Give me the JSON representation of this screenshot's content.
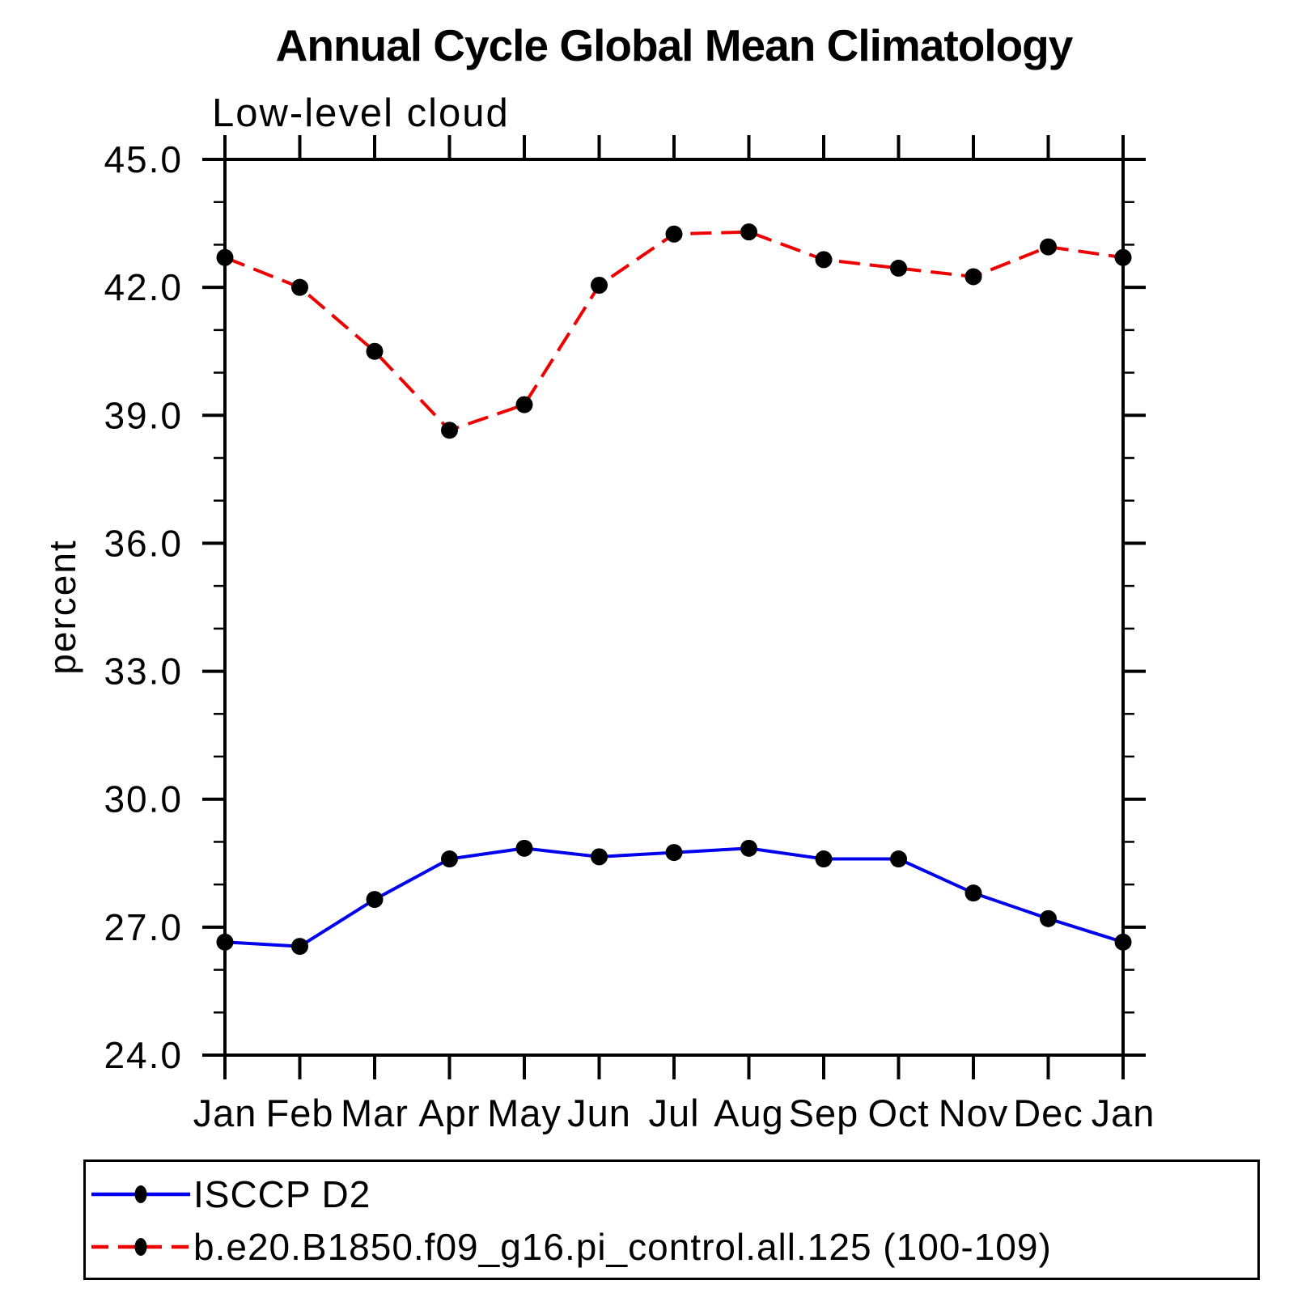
{
  "page": {
    "background": "#ffffff"
  },
  "chart_data": {
    "type": "line",
    "title": "Annual Cycle Global Mean Climatology",
    "subtitle": "Low-level cloud",
    "xlabel": "",
    "ylabel": "percent",
    "categories": [
      "Jan",
      "Feb",
      "Mar",
      "Apr",
      "May",
      "Jun",
      "Jul",
      "Aug",
      "Sep",
      "Oct",
      "Nov",
      "Dec",
      "Jan"
    ],
    "y_axis": {
      "min": 24.0,
      "max": 45.0,
      "major_tick_interval": 3.0,
      "minor_tick_interval": 1.0,
      "major_tick_labels": [
        "24.0",
        "27.0",
        "30.0",
        "33.0",
        "36.0",
        "39.0",
        "42.0",
        "45.0"
      ]
    },
    "grid": "off",
    "legend_position": "bottom",
    "series": [
      {
        "name": "ISCCP D2",
        "color": "#0000ee",
        "line_style": "solid",
        "marker": "filled-circle",
        "marker_color": "#000000",
        "values": [
          26.65,
          26.55,
          27.65,
          28.6,
          28.85,
          28.65,
          28.75,
          28.85,
          28.6,
          28.6,
          27.8,
          27.2,
          26.65
        ]
      },
      {
        "name": "b.e20.B1850.f09_g16.pi_control.all.125 (100-109)",
        "color": "#ee0000",
        "line_style": "dashed",
        "marker": "filled-circle",
        "marker_color": "#000000",
        "values": [
          42.7,
          42.0,
          40.5,
          38.65,
          39.25,
          42.05,
          43.25,
          43.3,
          42.65,
          42.45,
          42.25,
          42.95,
          42.7
        ]
      }
    ]
  }
}
